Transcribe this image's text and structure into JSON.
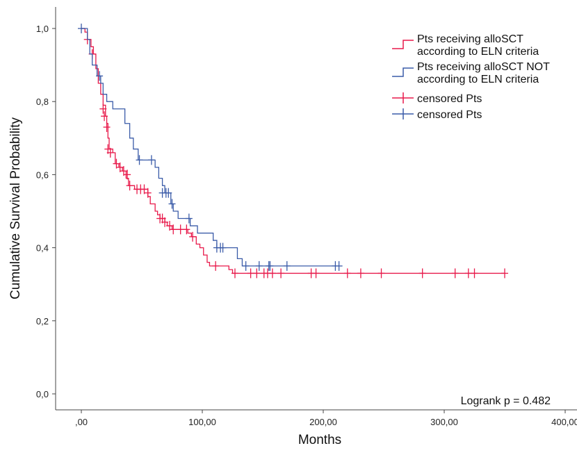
{
  "chart_data": {
    "type": "line",
    "subtype": "kaplan-meier",
    "xlabel": "Months",
    "ylabel": "Cumulative Survival Probability",
    "xlim": [
      0,
      400
    ],
    "ylim": [
      0,
      1.0
    ],
    "xticks": [
      0,
      100,
      200,
      300,
      400
    ],
    "xtick_labels": [
      ",00",
      "100,00",
      "200,00",
      "300,00",
      "400,00"
    ],
    "yticks": [
      0,
      0.2,
      0.4,
      0.6,
      0.8,
      1.0
    ],
    "ytick_labels": [
      "0,0",
      "0,2",
      "0,4",
      "0,6",
      "0,8",
      "1,0"
    ],
    "grid": false,
    "legend_position": "top-right",
    "annotation": "Logrank p = 0.482",
    "series": [
      {
        "name": "Pts receiving alloSCT according to ELN criteria",
        "color": "#e8194a",
        "steps": [
          [
            0,
            1.0
          ],
          [
            3,
            0.99
          ],
          [
            5,
            0.97
          ],
          [
            8,
            0.95
          ],
          [
            10,
            0.93
          ],
          [
            12,
            0.89
          ],
          [
            14,
            0.85
          ],
          [
            16,
            0.82
          ],
          [
            18,
            0.79
          ],
          [
            20,
            0.76
          ],
          [
            21,
            0.74
          ],
          [
            22,
            0.7
          ],
          [
            23,
            0.67
          ],
          [
            26,
            0.66
          ],
          [
            28,
            0.63
          ],
          [
            31,
            0.62
          ],
          [
            34,
            0.61
          ],
          [
            37,
            0.59
          ],
          [
            39,
            0.57
          ],
          [
            44,
            0.56
          ],
          [
            55,
            0.54
          ],
          [
            57,
            0.52
          ],
          [
            61,
            0.5
          ],
          [
            63,
            0.49
          ],
          [
            65,
            0.48
          ],
          [
            69,
            0.47
          ],
          [
            71,
            0.46
          ],
          [
            75,
            0.45
          ],
          [
            88,
            0.44
          ],
          [
            91,
            0.43
          ],
          [
            95,
            0.41
          ],
          [
            98,
            0.4
          ],
          [
            101,
            0.38
          ],
          [
            104,
            0.36
          ],
          [
            106,
            0.35
          ],
          [
            122,
            0.34
          ],
          [
            125,
            0.33
          ],
          [
            350,
            0.33
          ]
        ],
        "censored_label": "censored Pts",
        "censored": [
          [
            5,
            0.97
          ],
          [
            9,
            0.93
          ],
          [
            18,
            0.78
          ],
          [
            19,
            0.76
          ],
          [
            21,
            0.73
          ],
          [
            22,
            0.67
          ],
          [
            24,
            0.66
          ],
          [
            29,
            0.63
          ],
          [
            32,
            0.62
          ],
          [
            35,
            0.61
          ],
          [
            38,
            0.6
          ],
          [
            40,
            0.57
          ],
          [
            46,
            0.56
          ],
          [
            49,
            0.56
          ],
          [
            52,
            0.56
          ],
          [
            55,
            0.55
          ],
          [
            65,
            0.48
          ],
          [
            67,
            0.48
          ],
          [
            69,
            0.47
          ],
          [
            73,
            0.46
          ],
          [
            76,
            0.45
          ],
          [
            82,
            0.45
          ],
          [
            87,
            0.45
          ],
          [
            92,
            0.43
          ],
          [
            111,
            0.35
          ],
          [
            127,
            0.33
          ],
          [
            140,
            0.33
          ],
          [
            145,
            0.33
          ],
          [
            151,
            0.33
          ],
          [
            154,
            0.33
          ],
          [
            158,
            0.33
          ],
          [
            165,
            0.33
          ],
          [
            190,
            0.33
          ],
          [
            194,
            0.33
          ],
          [
            220,
            0.33
          ],
          [
            231,
            0.33
          ],
          [
            248,
            0.33
          ],
          [
            282,
            0.33
          ],
          [
            309,
            0.33
          ],
          [
            320,
            0.33
          ],
          [
            325,
            0.33
          ],
          [
            350,
            0.33
          ]
        ]
      },
      {
        "name": "Pts receiving alloSCT NOT according to ELN criteria",
        "color": "#3a5ba8",
        "steps": [
          [
            0,
            1.0
          ],
          [
            5,
            0.97
          ],
          [
            7,
            0.93
          ],
          [
            9,
            0.9
          ],
          [
            13,
            0.87
          ],
          [
            16,
            0.85
          ],
          [
            18,
            0.82
          ],
          [
            21,
            0.8
          ],
          [
            26,
            0.78
          ],
          [
            36,
            0.74
          ],
          [
            40,
            0.7
          ],
          [
            43,
            0.67
          ],
          [
            47,
            0.64
          ],
          [
            61,
            0.62
          ],
          [
            64,
            0.59
          ],
          [
            67,
            0.57
          ],
          [
            69,
            0.55
          ],
          [
            74,
            0.52
          ],
          [
            76,
            0.5
          ],
          [
            80,
            0.48
          ],
          [
            90,
            0.46
          ],
          [
            96,
            0.44
          ],
          [
            109,
            0.42
          ],
          [
            112,
            0.4
          ],
          [
            129,
            0.37
          ],
          [
            133,
            0.35
          ],
          [
            210,
            0.35
          ]
        ],
        "censored_label": "censored Pts",
        "censored": [
          [
            0,
            1.0
          ],
          [
            15,
            0.87
          ],
          [
            48,
            0.64
          ],
          [
            58,
            0.64
          ],
          [
            67,
            0.55
          ],
          [
            70,
            0.55
          ],
          [
            72,
            0.55
          ],
          [
            75,
            0.52
          ],
          [
            89,
            0.48
          ],
          [
            112,
            0.4
          ],
          [
            115,
            0.4
          ],
          [
            117,
            0.4
          ],
          [
            136,
            0.35
          ],
          [
            147,
            0.35
          ],
          [
            155,
            0.35
          ],
          [
            156,
            0.35
          ],
          [
            170,
            0.35
          ],
          [
            210,
            0.35
          ],
          [
            213,
            0.35
          ]
        ]
      }
    ]
  }
}
